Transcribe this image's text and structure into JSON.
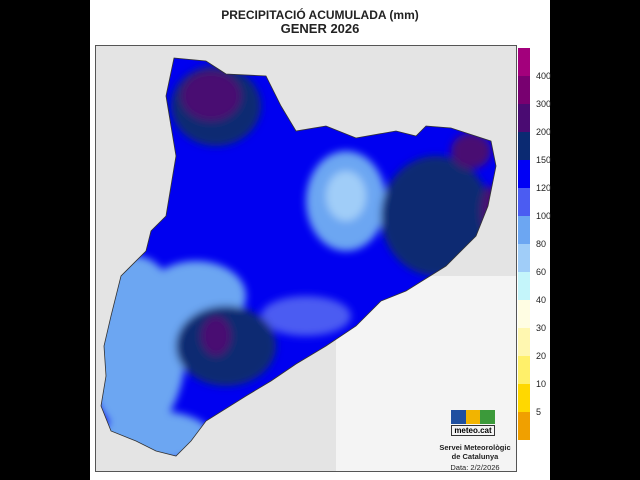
{
  "title": {
    "line1": "PRECIPITACIÓ ACUMULADA (mm)",
    "line2": "GENER 2026"
  },
  "legend": {
    "bands": [
      {
        "color": "#a3007c"
      },
      {
        "color": "#780070"
      },
      {
        "color": "#4a0b72"
      },
      {
        "color": "#0b2a72"
      },
      {
        "color": "#0000f5"
      },
      {
        "color": "#4b5cf2"
      },
      {
        "color": "#6ca6f2"
      },
      {
        "color": "#a0cdf8"
      },
      {
        "color": "#c4f5fa"
      },
      {
        "color": "#fffde3"
      },
      {
        "color": "#fff7b0"
      },
      {
        "color": "#fff06a"
      },
      {
        "color": "#ffd800"
      },
      {
        "color": "#f0a000"
      }
    ],
    "labels": [
      "400",
      "300",
      "200",
      "150",
      "120",
      "100",
      "80",
      "60",
      "40",
      "30",
      "20",
      "10",
      "5"
    ]
  },
  "logo": {
    "text": "meteo.cat",
    "colors": [
      "#1f4fa0",
      "#f2b400",
      "#3c9a3a"
    ]
  },
  "organization": [
    "Servei Meteorològic",
    "de Catalunya"
  ],
  "date": "Data: 2/2/2026"
}
